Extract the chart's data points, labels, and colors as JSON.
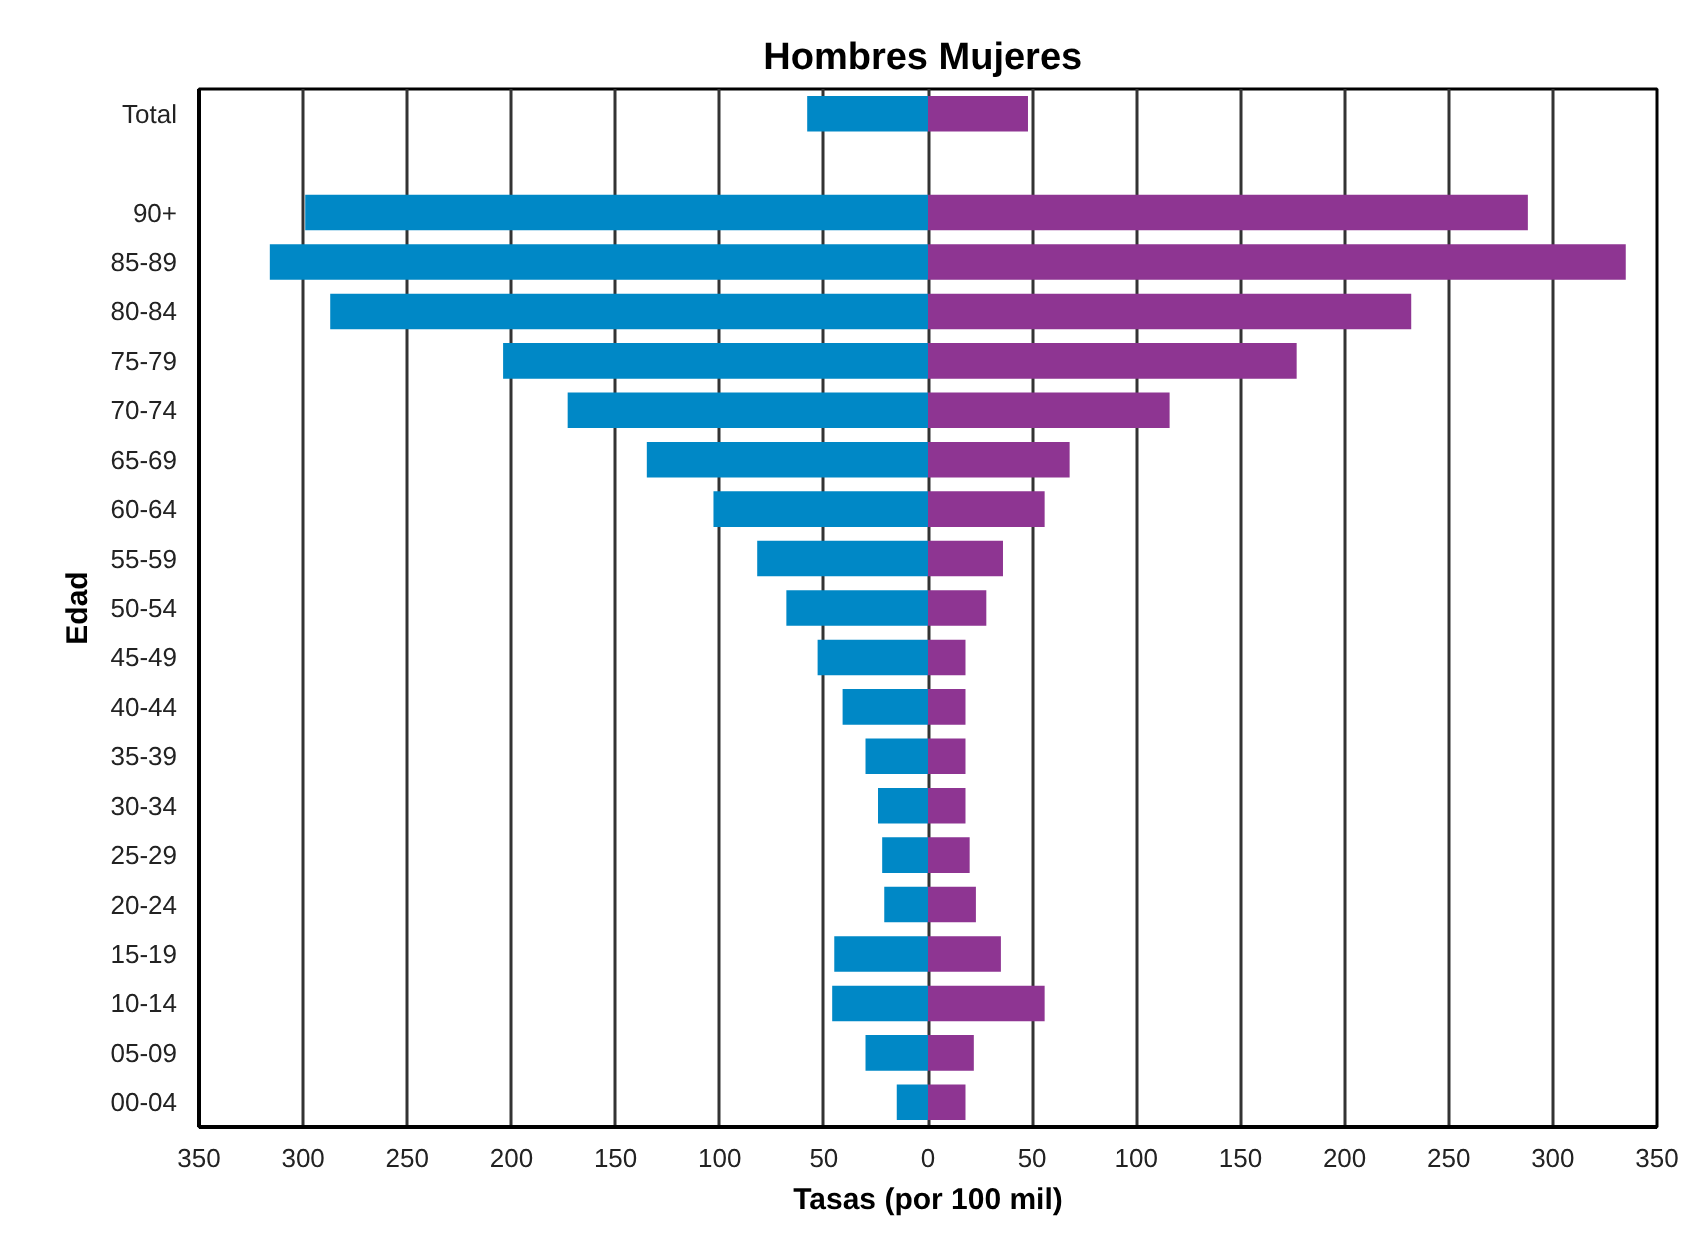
{
  "chart_data": {
    "type": "bar",
    "orientation": "horizontal",
    "stacked": true,
    "title": "Hombres  Mujeres",
    "xlabel": "Tasas (por 100 mil)",
    "ylabel": "Edad",
    "categories": [
      "Total",
      null,
      "90+",
      "85-89",
      "80-84",
      "75-79",
      "70-74",
      "65-69",
      "60-64",
      "55-59",
      "50-54",
      "45-49",
      "40-44",
      "35-39",
      "30-34",
      "25-29",
      "20-24",
      "15-19",
      "10-14",
      "05-09",
      "00-04"
    ],
    "series": [
      {
        "color": "#0088c6",
        "values": [
          -58,
          null,
          -299,
          -316,
          -287,
          -204,
          -173,
          -135,
          -103,
          -82,
          -68,
          -53,
          -41,
          -30,
          -24,
          -22,
          -21,
          -45,
          -46,
          -30,
          -15
        ]
      },
      {
        "color": "#8e3592",
        "values": [
          48,
          null,
          288,
          335,
          232,
          177,
          116,
          68,
          56,
          36,
          28,
          18,
          18,
          18,
          18,
          20,
          23,
          35,
          56,
          22,
          18
        ]
      }
    ],
    "xlim": [
      -350,
      350
    ],
    "xticks": [
      {
        "value": -350,
        "label": "350"
      },
      {
        "value": -300,
        "label": "300"
      },
      {
        "value": -250,
        "label": "250"
      },
      {
        "value": -200,
        "label": "200"
      },
      {
        "value": -150,
        "label": "150"
      },
      {
        "value": -100,
        "label": "100"
      },
      {
        "value": -50,
        "label": "50"
      },
      0,
      50,
      100,
      150,
      200,
      250,
      300,
      350
    ],
    "grid": "x"
  }
}
